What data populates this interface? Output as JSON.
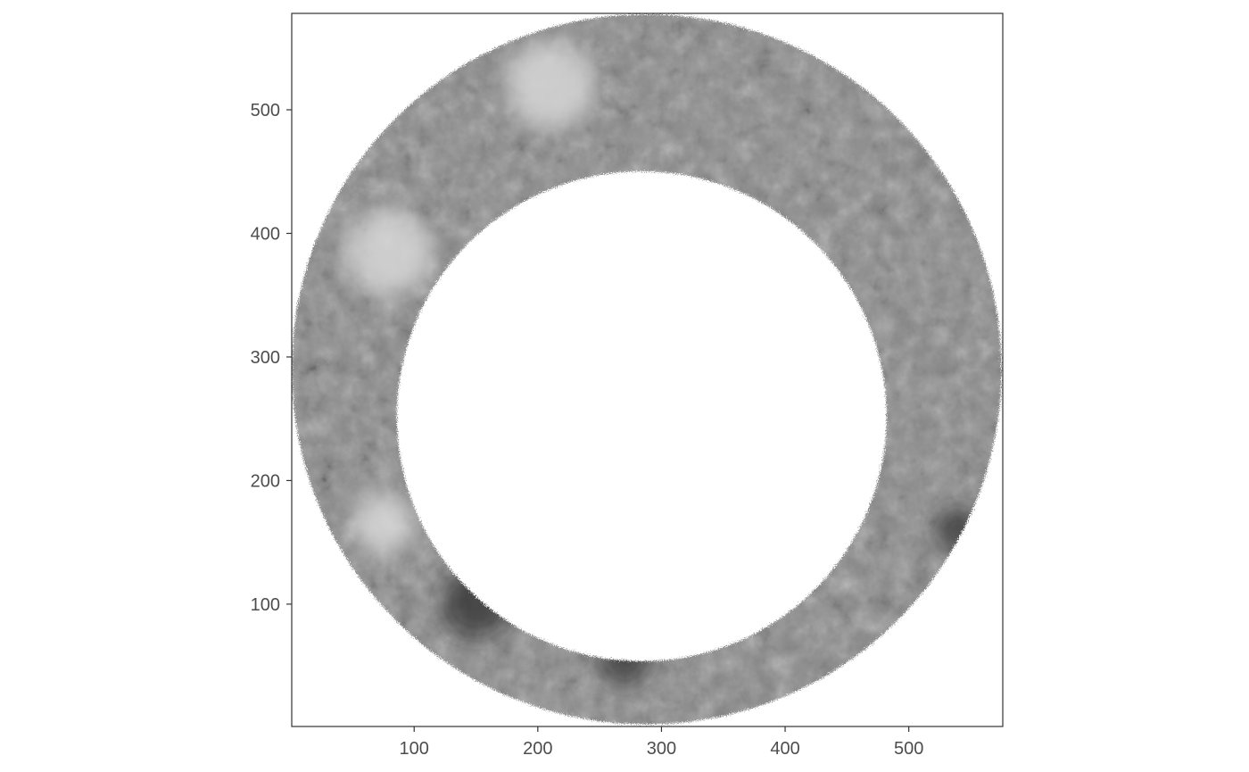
{
  "chart_data": {
    "type": "heatmap",
    "title": "",
    "xlabel": "",
    "ylabel": "",
    "colormap": "grayscale",
    "legend": "none",
    "grid": false,
    "xlim": [
      1,
      576
    ],
    "ylim": [
      1,
      578
    ],
    "x_ticks": [
      100,
      200,
      300,
      400,
      500
    ],
    "y_ticks": [
      100,
      200,
      300,
      400,
      500
    ],
    "x_tick_labels": [
      "100",
      "200",
      "300",
      "400",
      "500"
    ],
    "y_tick_labels": [
      "100",
      "200",
      "300",
      "400",
      "500"
    ],
    "ring": {
      "outer_center": [
        288,
        290
      ],
      "outer_radius": 287,
      "inner_center": [
        284,
        252
      ],
      "inner_radius": 198
    },
    "bright_regions": [
      {
        "x": 210,
        "y": 520,
        "r": 35
      },
      {
        "x": 80,
        "y": 385,
        "r": 35
      },
      {
        "x": 75,
        "y": 165,
        "r": 25
      }
    ],
    "dark_regions": [
      {
        "x": 150,
        "y": 100,
        "r": 28
      },
      {
        "x": 270,
        "y": 55,
        "r": 20
      },
      {
        "x": 540,
        "y": 160,
        "r": 18
      }
    ],
    "colors": {
      "panel_border": "#333333",
      "tick_color": "#333333",
      "tick_label_color": "#4d4d4d",
      "ring_mid": "#8a8a8a",
      "ring_light": "#d6d6d6",
      "ring_dark": "#2a2a2a",
      "background": "#ffffff"
    }
  }
}
